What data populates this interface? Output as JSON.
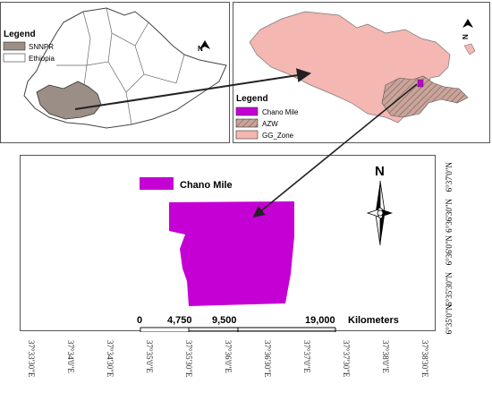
{
  "panel_a": {
    "legend_title": "Legend",
    "items": [
      {
        "label": "SNNPR",
        "fill": "#9b8e86"
      },
      {
        "label": "Ethiopia",
        "fill": "#ffffff"
      }
    ],
    "north_label": "N"
  },
  "panel_b": {
    "legend_title": "Legend",
    "items": [
      {
        "label": "Chano Mile",
        "fill": "#c400d4"
      },
      {
        "label": "AZW",
        "fill": "#c9a49a"
      },
      {
        "label": "GG_Zone",
        "fill": "#f4b7b1"
      }
    ],
    "north_label": "N"
  },
  "panel_c": {
    "legend_label": "Chano Mile",
    "legend_fill": "#c400d4",
    "north_label": "N",
    "scale": {
      "ticks": [
        "0",
        "4,750",
        "9,500",
        "19,000"
      ],
      "unit": "Kilometers"
    },
    "lat_labels": [
      "6°37'0\"N",
      "6°36'30\"N",
      "6°36'0\"N",
      "6°35'30\"N",
      "6°35'0\"N"
    ],
    "lon_labels": [
      "37°33'30\"E",
      "37°34'0\"E",
      "37°34'30\"E",
      "37°35'0\"E",
      "37°35'30\"E",
      "37°36'0\"E",
      "37°36'30\"E",
      "37°37'0\"E",
      "37°37'30\"E",
      "37°38'0\"E",
      "37°38'30\"E"
    ]
  },
  "colors": {
    "snnpr": "#9b8e86",
    "gg_zone": "#f4b7b1",
    "azw": "#c9a49a",
    "chano_mile": "#c400d4",
    "ethiopia": "#ffffff"
  }
}
